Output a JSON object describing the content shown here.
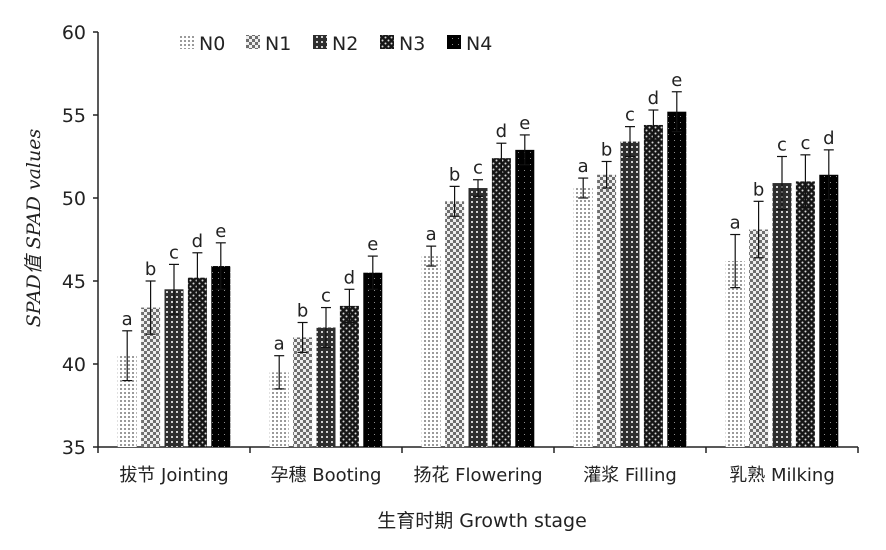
{
  "chart_data": {
    "type": "bar",
    "title": "",
    "xlabel": "生育时期 Growth stage",
    "ylabel": "SPAD值  SPAD values",
    "ylim": [
      35,
      60
    ],
    "yticks": [
      35,
      40,
      45,
      50,
      55,
      60
    ],
    "grid": false,
    "legend_position": "top-left",
    "categories": [
      "拔节  Jointing",
      "孕穗 Booting",
      "扬花 Flowering",
      "灌浆  Filling",
      "乳熟  Milking"
    ],
    "series": [
      {
        "name": "N0",
        "values": [
          40.5,
          39.5,
          46.5,
          50.6,
          46.2
        ],
        "errors": [
          1.5,
          1.0,
          0.6,
          0.6,
          1.6
        ],
        "letters": [
          "a",
          "a",
          "a",
          "a",
          "a"
        ],
        "pattern": "p0",
        "color": "#d8d8d8"
      },
      {
        "name": "N1",
        "values": [
          43.4,
          41.6,
          49.8,
          51.4,
          48.1
        ],
        "errors": [
          1.6,
          0.9,
          0.9,
          0.8,
          1.7
        ],
        "letters": [
          "b",
          "b",
          "b",
          "b",
          "b"
        ],
        "pattern": "p1",
        "color": "#9a9a9a"
      },
      {
        "name": "N2",
        "values": [
          44.5,
          42.2,
          50.6,
          53.4,
          50.9
        ],
        "errors": [
          1.5,
          1.2,
          0.5,
          0.9,
          1.6
        ],
        "letters": [
          "c",
          "c",
          "c",
          "c",
          "c"
        ],
        "pattern": "p2",
        "color": "#5a5a5a"
      },
      {
        "name": "N3",
        "values": [
          45.2,
          43.5,
          52.4,
          54.4,
          51.0
        ],
        "errors": [
          1.5,
          1.0,
          0.9,
          0.9,
          1.6
        ],
        "letters": [
          "d",
          "d",
          "d",
          "d",
          "c"
        ],
        "pattern": "p3",
        "color": "#2a2a2a"
      },
      {
        "name": "N4",
        "values": [
          45.9,
          45.5,
          52.9,
          55.2,
          51.4
        ],
        "errors": [
          1.4,
          1.0,
          0.9,
          1.2,
          1.5
        ],
        "letters": [
          "e",
          "e",
          "e",
          "e",
          "d"
        ],
        "pattern": "p4",
        "color": "#0a0a0a"
      }
    ]
  }
}
